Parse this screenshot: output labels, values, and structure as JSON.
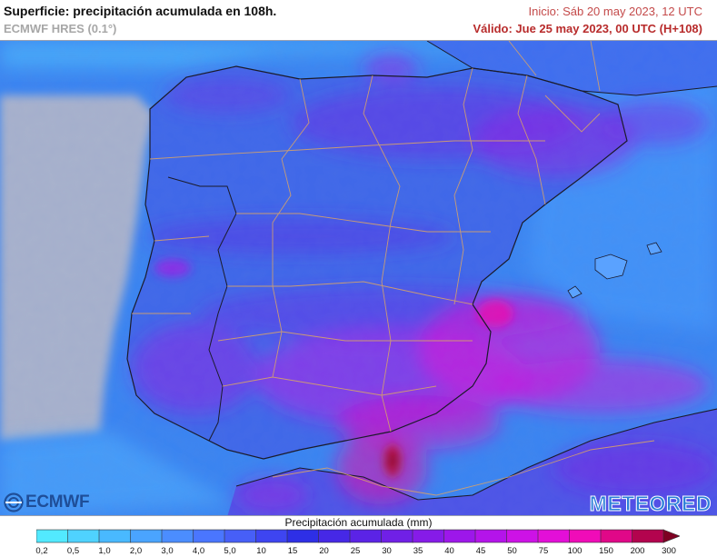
{
  "header": {
    "title": "Superficie: precipitación acumulada en 108h.",
    "model": "ECMWF HRES (0.1°)",
    "init": "Inicio: Sáb 20 may 2023, 12 UTC",
    "valid": "Válido: Jue 25 may 2023, 00 UTC (H+108)"
  },
  "colors": {
    "ocean": "#a9b3cd",
    "land_base": "#3f68ea",
    "border": "#d0a06c",
    "title_red": "#b82b2b",
    "ecmwf_blue": "#1f4e98",
    "meteored_blue": "#2b7fd8"
  },
  "branding": {
    "left_logo": "ECMWF",
    "left_logo_icon": "ecmwf-circles-icon",
    "right_logo": "METEORED"
  },
  "legend": {
    "title": "Precipitación acumulada (mm)",
    "levels": [
      "0,2",
      "0,5",
      "1,0",
      "2,0",
      "3,0",
      "4,0",
      "5,0",
      "10",
      "15",
      "20",
      "25",
      "30",
      "35",
      "40",
      "45",
      "50",
      "75",
      "100",
      "150",
      "200",
      "300"
    ],
    "colors": [
      "#52e9ff",
      "#4fd2ff",
      "#49b9ff",
      "#4aa4ff",
      "#4b8dff",
      "#4a76ff",
      "#475ff7",
      "#3e45f1",
      "#2e2fe6",
      "#4628e6",
      "#5b23e6",
      "#7020e6",
      "#861be8",
      "#9d17ea",
      "#b414ea",
      "#cd12e6",
      "#e30fd8",
      "#f00cb8",
      "#e00888",
      "#b3044e",
      "#7e0022"
    ],
    "arrow": "right-arrow-icon"
  },
  "map": {
    "region": "Península Ibérica y Baleares",
    "overlay": "precipitation-field"
  }
}
